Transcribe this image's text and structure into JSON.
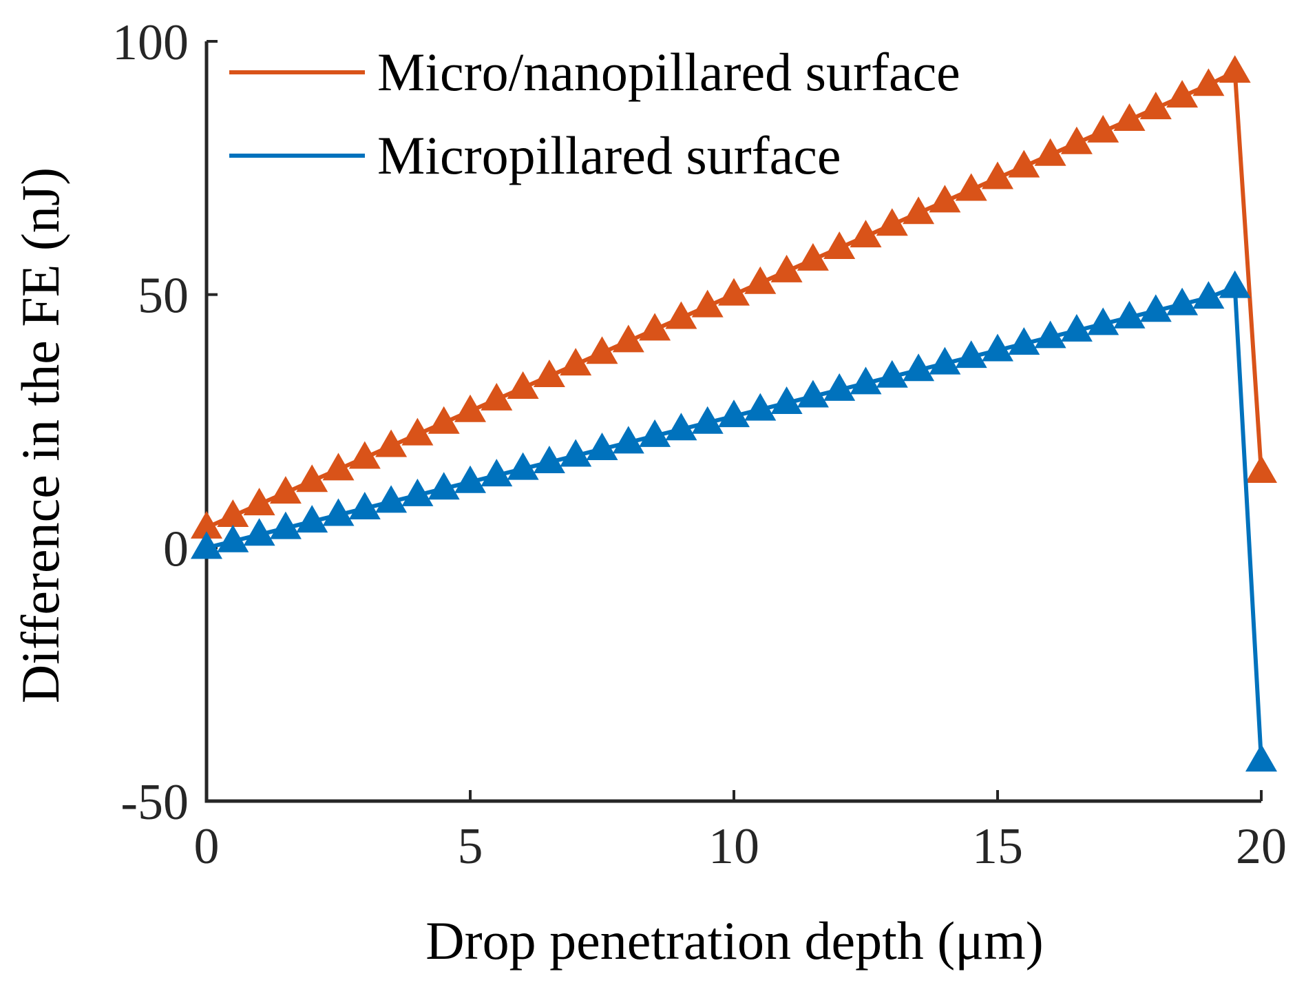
{
  "chart_data": {
    "type": "line",
    "title": "",
    "xlabel": "Drop penetration depth (μm)",
    "ylabel": "Difference in the FE (nJ)",
    "xlim": [
      0,
      20
    ],
    "ylim": [
      -50,
      100
    ],
    "xticks": [
      0,
      5,
      10,
      15,
      20
    ],
    "yticks": [
      -50,
      0,
      50,
      100
    ],
    "xtick_labels": [
      "0",
      "5",
      "10",
      "15",
      "20"
    ],
    "ytick_labels": [
      "-50",
      "0",
      "50",
      "100"
    ],
    "grid": false,
    "legend_position": "top-left",
    "marker": "triangle-up",
    "series": [
      {
        "name": "Micro/nanopillared surface",
        "color": "#D95319",
        "x": [
          0,
          0.5,
          1,
          1.5,
          2,
          2.5,
          3,
          3.5,
          4,
          4.5,
          5,
          5.5,
          6,
          6.5,
          7,
          7.5,
          8,
          8.5,
          9,
          9.5,
          10,
          10.5,
          11,
          11.5,
          12,
          12.5,
          13,
          13.5,
          14,
          14.5,
          15,
          15.5,
          16,
          16.5,
          17,
          17.5,
          18,
          18.5,
          19,
          19.5,
          20
        ],
        "y": [
          4.0,
          6.3,
          8.6,
          10.9,
          13.2,
          15.5,
          17.8,
          20.1,
          22.4,
          24.7,
          27.0,
          29.3,
          31.6,
          33.9,
          36.2,
          38.5,
          40.8,
          43.1,
          45.4,
          47.7,
          50.0,
          52.3,
          54.6,
          56.9,
          59.2,
          61.5,
          63.8,
          66.1,
          68.4,
          70.7,
          73.0,
          75.3,
          77.6,
          79.9,
          82.2,
          84.5,
          86.8,
          89.1,
          91.4,
          94.0,
          15.0
        ]
      },
      {
        "name": "Micropillared surface",
        "color": "#0072BD",
        "x": [
          0,
          0.5,
          1,
          1.5,
          2,
          2.5,
          3,
          3.5,
          4,
          4.5,
          5,
          5.5,
          6,
          6.5,
          7,
          7.5,
          8,
          8.5,
          9,
          9.5,
          10,
          10.5,
          11,
          11.5,
          12,
          12.5,
          13,
          13.5,
          14,
          14.5,
          15,
          15.5,
          16,
          16.5,
          17,
          17.5,
          18,
          18.5,
          19,
          19.5,
          20
        ],
        "y": [
          0.0,
          1.3,
          2.6,
          3.9,
          5.2,
          6.5,
          7.8,
          9.1,
          10.4,
          11.7,
          13.0,
          14.3,
          15.6,
          16.9,
          18.2,
          19.5,
          20.8,
          22.1,
          23.4,
          24.7,
          26.0,
          27.3,
          28.6,
          29.9,
          31.2,
          32.5,
          33.8,
          35.1,
          36.4,
          37.7,
          39.0,
          40.3,
          41.6,
          42.9,
          44.2,
          45.5,
          46.8,
          48.1,
          49.4,
          51.5,
          -42.0
        ]
      }
    ]
  }
}
